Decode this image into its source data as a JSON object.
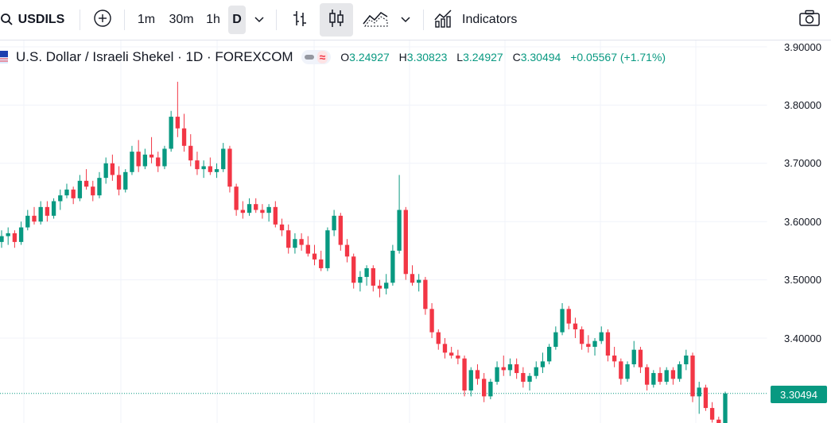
{
  "toolbar": {
    "symbol": "USDILS",
    "intervals": [
      "1m",
      "30m",
      "1h",
      "D"
    ],
    "active_interval": "D",
    "indicators_label": "Indicators",
    "icons": [
      "search-icon",
      "add-symbol-icon",
      "chevron-down-icon",
      "bar-chart-icon",
      "candles-icon",
      "area-chart-icon",
      "chevron-down-icon",
      "indicators-icon",
      "camera-icon"
    ]
  },
  "legend": {
    "title": "U.S. Dollar / Israeli Shekel · 1D · FOREXCOM",
    "o_label": "O",
    "o": "3.24927",
    "h_label": "H",
    "h": "3.30823",
    "l_label": "L",
    "l": "3.24927",
    "c_label": "C",
    "c": "3.30494",
    "change": "+0.05567 (+1.71%)"
  },
  "price_axis": {
    "labels": [
      "3.90000",
      "3.80000",
      "3.70000",
      "3.60000",
      "3.50000",
      "3.40000"
    ],
    "last_price": "3.30494"
  },
  "colors": {
    "up": "#089981",
    "down": "#f23645",
    "grid": "#f0f3fa",
    "accent": "#089981"
  },
  "chart_data": {
    "type": "candlestick",
    "symbol": "USDILS",
    "interval": "1D",
    "ylim": [
      3.23,
      3.92
    ],
    "y_ticks": [
      3.9,
      3.8,
      3.7,
      3.6,
      3.5,
      3.4
    ],
    "last": 3.30494,
    "candles": [
      [
        3.565,
        3.585,
        3.555,
        3.575
      ],
      [
        3.575,
        3.59,
        3.56,
        3.58
      ],
      [
        3.58,
        3.585,
        3.555,
        3.565
      ],
      [
        3.565,
        3.6,
        3.56,
        3.59
      ],
      [
        3.59,
        3.62,
        3.585,
        3.61
      ],
      [
        3.61,
        3.625,
        3.595,
        3.6
      ],
      [
        3.6,
        3.635,
        3.595,
        3.625
      ],
      [
        3.625,
        3.635,
        3.6,
        3.61
      ],
      [
        3.61,
        3.64,
        3.605,
        3.635
      ],
      [
        3.635,
        3.655,
        3.62,
        3.645
      ],
      [
        3.645,
        3.665,
        3.64,
        3.655
      ],
      [
        3.655,
        3.66,
        3.63,
        3.64
      ],
      [
        3.64,
        3.68,
        3.635,
        3.67
      ],
      [
        3.67,
        3.69,
        3.655,
        3.66
      ],
      [
        3.66,
        3.67,
        3.635,
        3.645
      ],
      [
        3.645,
        3.685,
        3.64,
        3.675
      ],
      [
        3.675,
        3.71,
        3.665,
        3.7
      ],
      [
        3.7,
        3.715,
        3.67,
        3.68
      ],
      [
        3.68,
        3.695,
        3.645,
        3.655
      ],
      [
        3.655,
        3.69,
        3.65,
        3.685
      ],
      [
        3.685,
        3.73,
        3.68,
        3.72
      ],
      [
        3.72,
        3.74,
        3.685,
        3.695
      ],
      [
        3.695,
        3.725,
        3.69,
        3.715
      ],
      [
        3.715,
        3.745,
        3.7,
        3.71
      ],
      [
        3.71,
        3.72,
        3.685,
        3.695
      ],
      [
        3.695,
        3.73,
        3.69,
        3.725
      ],
      [
        3.725,
        3.79,
        3.72,
        3.78
      ],
      [
        3.78,
        3.84,
        3.745,
        3.76
      ],
      [
        3.76,
        3.785,
        3.72,
        3.73
      ],
      [
        3.73,
        3.75,
        3.695,
        3.705
      ],
      [
        3.705,
        3.72,
        3.68,
        3.69
      ],
      [
        3.69,
        3.705,
        3.675,
        3.695
      ],
      [
        3.695,
        3.71,
        3.68,
        3.685
      ],
      [
        3.685,
        3.7,
        3.675,
        3.69
      ],
      [
        3.69,
        3.735,
        3.685,
        3.725
      ],
      [
        3.725,
        3.73,
        3.65,
        3.66
      ],
      [
        3.66,
        3.665,
        3.61,
        3.62
      ],
      [
        3.62,
        3.635,
        3.605,
        3.615
      ],
      [
        3.615,
        3.64,
        3.61,
        3.63
      ],
      [
        3.63,
        3.64,
        3.615,
        3.62
      ],
      [
        3.62,
        3.63,
        3.605,
        3.615
      ],
      [
        3.615,
        3.63,
        3.6,
        3.625
      ],
      [
        3.625,
        3.635,
        3.59,
        3.595
      ],
      [
        3.595,
        3.605,
        3.575,
        3.585
      ],
      [
        3.585,
        3.595,
        3.545,
        3.555
      ],
      [
        3.555,
        3.58,
        3.545,
        3.57
      ],
      [
        3.57,
        3.58,
        3.55,
        3.56
      ],
      [
        3.56,
        3.575,
        3.54,
        3.545
      ],
      [
        3.545,
        3.56,
        3.525,
        3.535
      ],
      [
        3.535,
        3.55,
        3.515,
        3.52
      ],
      [
        3.52,
        3.59,
        3.515,
        3.585
      ],
      [
        3.585,
        3.62,
        3.575,
        3.61
      ],
      [
        3.61,
        3.615,
        3.55,
        3.56
      ],
      [
        3.56,
        3.57,
        3.53,
        3.54
      ],
      [
        3.54,
        3.545,
        3.485,
        3.495
      ],
      [
        3.495,
        3.515,
        3.48,
        3.505
      ],
      [
        3.505,
        3.525,
        3.49,
        3.52
      ],
      [
        3.52,
        3.525,
        3.48,
        3.49
      ],
      [
        3.49,
        3.5,
        3.47,
        3.485
      ],
      [
        3.485,
        3.51,
        3.475,
        3.495
      ],
      [
        3.495,
        3.56,
        3.49,
        3.55
      ],
      [
        3.55,
        3.68,
        3.545,
        3.62
      ],
      [
        3.62,
        3.625,
        3.5,
        3.51
      ],
      [
        3.51,
        3.525,
        3.49,
        3.495
      ],
      [
        3.495,
        3.51,
        3.48,
        3.5
      ],
      [
        3.5,
        3.505,
        3.44,
        3.45
      ],
      [
        3.45,
        3.46,
        3.4,
        3.41
      ],
      [
        3.41,
        3.415,
        3.38,
        3.39
      ],
      [
        3.39,
        3.4,
        3.365,
        3.375
      ],
      [
        3.375,
        3.385,
        3.365,
        3.37
      ],
      [
        3.37,
        3.38,
        3.355,
        3.365
      ],
      [
        3.365,
        3.37,
        3.3,
        3.31
      ],
      [
        3.31,
        3.35,
        3.3,
        3.345
      ],
      [
        3.345,
        3.355,
        3.32,
        3.33
      ],
      [
        3.33,
        3.34,
        3.29,
        3.3
      ],
      [
        3.3,
        3.33,
        3.295,
        3.325
      ],
      [
        3.325,
        3.36,
        3.32,
        3.35
      ],
      [
        3.35,
        3.37,
        3.335,
        3.345
      ],
      [
        3.345,
        3.365,
        3.335,
        3.355
      ],
      [
        3.355,
        3.365,
        3.33,
        3.34
      ],
      [
        3.34,
        3.35,
        3.315,
        3.325
      ],
      [
        3.325,
        3.34,
        3.31,
        3.335
      ],
      [
        3.335,
        3.36,
        3.33,
        3.35
      ],
      [
        3.35,
        3.375,
        3.34,
        3.36
      ],
      [
        3.36,
        3.39,
        3.355,
        3.385
      ],
      [
        3.385,
        3.42,
        3.38,
        3.41
      ],
      [
        3.41,
        3.46,
        3.405,
        3.45
      ],
      [
        3.45,
        3.455,
        3.415,
        3.425
      ],
      [
        3.425,
        3.435,
        3.4,
        3.415
      ],
      [
        3.415,
        3.42,
        3.38,
        3.39
      ],
      [
        3.39,
        3.405,
        3.375,
        3.385
      ],
      [
        3.385,
        3.4,
        3.37,
        3.395
      ],
      [
        3.395,
        3.42,
        3.39,
        3.41
      ],
      [
        3.41,
        3.415,
        3.36,
        3.37
      ],
      [
        3.37,
        3.385,
        3.35,
        3.36
      ],
      [
        3.36,
        3.365,
        3.32,
        3.33
      ],
      [
        3.33,
        3.36,
        3.325,
        3.355
      ],
      [
        3.355,
        3.395,
        3.35,
        3.38
      ],
      [
        3.38,
        3.385,
        3.34,
        3.35
      ],
      [
        3.35,
        3.355,
        3.31,
        3.32
      ],
      [
        3.32,
        3.345,
        3.315,
        3.34
      ],
      [
        3.34,
        3.35,
        3.32,
        3.325
      ],
      [
        3.325,
        3.35,
        3.32,
        3.345
      ],
      [
        3.345,
        3.35,
        3.32,
        3.33
      ],
      [
        3.33,
        3.36,
        3.325,
        3.355
      ],
      [
        3.355,
        3.38,
        3.345,
        3.37
      ],
      [
        3.37,
        3.375,
        3.29,
        3.3
      ],
      [
        3.3,
        3.325,
        3.27,
        3.315
      ],
      [
        3.315,
        3.32,
        3.275,
        3.28
      ],
      [
        3.28,
        3.29,
        3.255,
        3.26
      ],
      [
        3.26,
        3.265,
        3.24,
        3.25
      ],
      [
        3.249,
        3.308,
        3.249,
        3.305
      ]
    ]
  }
}
